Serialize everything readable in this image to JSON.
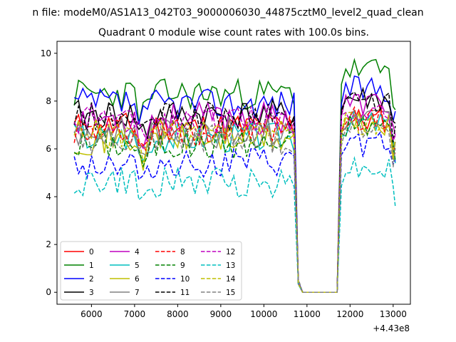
{
  "figure": {
    "suptitle": "n file: modeM0/AS1A13_042T03_9000006030_44875cztM0_level2_quad_clean"
  },
  "chart_data": {
    "type": "line",
    "title": "Quadrant 0 module wise count rates with 100.0s bins.",
    "xlabel": "",
    "ylabel": "",
    "x_offset_label": "+4.43e8",
    "xlim": [
      5200,
      13400
    ],
    "ylim": [
      -0.5,
      10.5
    ],
    "x_ticks": [
      6000,
      7000,
      8000,
      9000,
      10000,
      11000,
      12000,
      13000
    ],
    "y_ticks": [
      0,
      2,
      4,
      6,
      8,
      10
    ],
    "x": [
      5600,
      5700,
      5800,
      5900,
      6000,
      6100,
      6200,
      6300,
      6400,
      6500,
      6600,
      6700,
      6800,
      6900,
      7000,
      7100,
      7200,
      7300,
      7400,
      7500,
      7600,
      7700,
      7800,
      7900,
      8000,
      8100,
      8200,
      8300,
      8400,
      8500,
      8600,
      8700,
      8800,
      8900,
      9000,
      9100,
      9200,
      9300,
      9400,
      9500,
      9600,
      9700,
      9800,
      9900,
      10000,
      10100,
      10200,
      10300,
      10400,
      10500,
      10600,
      10700,
      10800,
      10900,
      11000,
      11100,
      11200,
      11300,
      11400,
      11500,
      11600,
      11700,
      11800,
      11900,
      12000,
      12100,
      12200,
      12300,
      12400,
      12500,
      12600,
      12700,
      12800,
      12900,
      13000,
      13050
    ],
    "legend": {
      "location": "lower-left",
      "columns": 4
    },
    "series": [
      {
        "name": "0",
        "color": "#ff0000",
        "dash": "solid",
        "base": 6.9,
        "post": 7.2,
        "seed": 11
      },
      {
        "name": "1",
        "color": "#008000",
        "dash": "solid",
        "base": 8.3,
        "post": 9.3,
        "seed": 23
      },
      {
        "name": "2",
        "color": "#0000ff",
        "dash": "solid",
        "base": 7.9,
        "post": 8.5,
        "seed": 37
      },
      {
        "name": "3",
        "color": "#000000",
        "dash": "solid",
        "base": 7.4,
        "post": 8.1,
        "seed": 41
      },
      {
        "name": "4",
        "color": "#bf00bf",
        "dash": "solid",
        "base": 7.3,
        "post": 7.9,
        "seed": 53
      },
      {
        "name": "5",
        "color": "#00bfbf",
        "dash": "solid",
        "base": 6.5,
        "post": 7.1,
        "seed": 67
      },
      {
        "name": "6",
        "color": "#bfbf00",
        "dash": "solid",
        "base": 6.4,
        "post": 7.0,
        "seed": 71
      },
      {
        "name": "7",
        "color": "#808080",
        "dash": "solid",
        "base": 6.7,
        "post": 7.3,
        "seed": 83
      },
      {
        "name": "8",
        "color": "#ff0000",
        "dash": "dashed",
        "base": 6.8,
        "post": 7.3,
        "seed": 97
      },
      {
        "name": "9",
        "color": "#008000",
        "dash": "dashed",
        "base": 6.2,
        "post": 7.0,
        "seed": 101
      },
      {
        "name": "10",
        "color": "#0000ff",
        "dash": "dashed",
        "base": 5.4,
        "post": 6.2,
        "seed": 113
      },
      {
        "name": "11",
        "color": "#000000",
        "dash": "dashed",
        "base": 7.3,
        "post": 8.0,
        "seed": 127
      },
      {
        "name": "12",
        "color": "#bf00bf",
        "dash": "dashed",
        "base": 7.2,
        "post": 7.7,
        "seed": 131
      },
      {
        "name": "13",
        "color": "#00bfbf",
        "dash": "dashed",
        "base": 4.6,
        "post": 5.2,
        "seed": 149
      },
      {
        "name": "14",
        "color": "#bfbf00",
        "dash": "dashed",
        "base": 6.6,
        "post": 7.1,
        "seed": 157
      },
      {
        "name": "15",
        "color": "#808080",
        "dash": "dashed",
        "base": 6.4,
        "post": 6.9,
        "seed": 163
      }
    ],
    "gap": {
      "drop_start": 10700,
      "zero_start": 10900,
      "zero_end": 11700,
      "rise_end": 11900,
      "end": 13050
    }
  }
}
